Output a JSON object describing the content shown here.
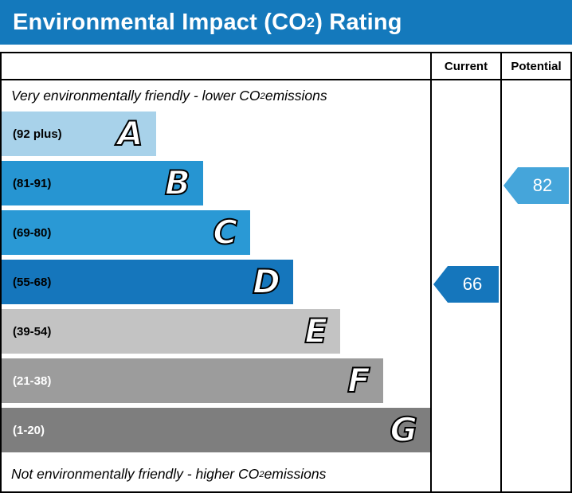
{
  "title": {
    "prefix": "Environmental Impact (CO",
    "sub": "2",
    "suffix": ") Rating"
  },
  "header": {
    "current": "Current",
    "potential": "Potential"
  },
  "notes": {
    "top": {
      "prefix": "Very environmentally friendly - lower CO",
      "sub": "2",
      "suffix": " emissions"
    },
    "bottom": {
      "prefix": "Not environmentally friendly - higher CO",
      "sub": "2",
      "suffix": " emissions"
    }
  },
  "chart_data": {
    "type": "bar",
    "title": "Environmental Impact (CO2) Rating",
    "orientation": "horizontal",
    "columns": [
      "Current",
      "Potential"
    ],
    "bands": [
      {
        "letter": "A",
        "range": "(92 plus)",
        "color": "#a8d2ea",
        "width_pct": 36,
        "text_color": "#000000"
      },
      {
        "letter": "B",
        "range": "(81-91)",
        "color": "#2695d2",
        "width_pct": 47,
        "text_color": "#000000"
      },
      {
        "letter": "C",
        "range": "(69-80)",
        "color": "#2a99d5",
        "width_pct": 58,
        "text_color": "#000000"
      },
      {
        "letter": "D",
        "range": "(55-68)",
        "color": "#1576bc",
        "width_pct": 68,
        "text_color": "#000000"
      },
      {
        "letter": "E",
        "range": "(39-54)",
        "color": "#c3c3c3",
        "width_pct": 79,
        "text_color": "#000000"
      },
      {
        "letter": "F",
        "range": "(21-38)",
        "color": "#9c9c9c",
        "width_pct": 89,
        "text_color": "#ffffff"
      },
      {
        "letter": "G",
        "range": "(1-20)",
        "color": "#7e7e7e",
        "width_pct": 100,
        "text_color": "#ffffff"
      }
    ],
    "current": {
      "value": 66,
      "band": "D",
      "color": "#1576bc"
    },
    "potential": {
      "value": 82,
      "band": "B",
      "color": "#45a5da"
    }
  }
}
